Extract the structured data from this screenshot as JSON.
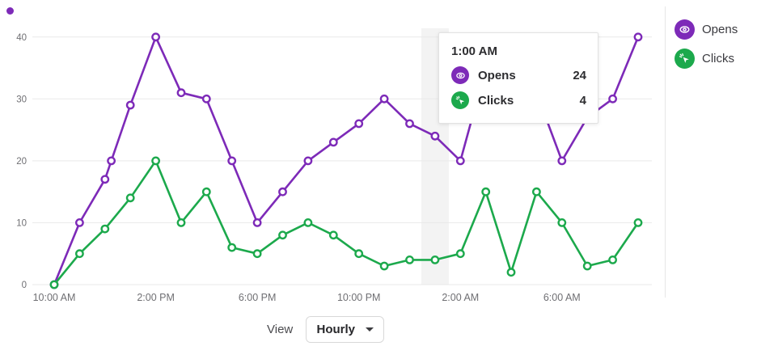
{
  "colors": {
    "opens_purple": "#7D2AB8",
    "clicks_green": "#1CA94C",
    "gridline": "#e9e9e9",
    "axis_text": "#6f6f73",
    "highlight_band": "#f3f3f3"
  },
  "chart_data": {
    "type": "line",
    "title": "",
    "xlabel": "",
    "ylabel": "",
    "grid": true,
    "legend_position": "right",
    "x_axis": {
      "unit": "hours from 10:00 AM",
      "range_hours": [
        0,
        23
      ],
      "tick_hours": [
        0,
        4,
        8,
        12,
        16,
        20
      ],
      "tick_labels": [
        "10:00 AM",
        "2:00 PM",
        "6:00 PM",
        "10:00 PM",
        "2:00 AM",
        "6:00 AM"
      ]
    },
    "y_axis": {
      "ticks": [
        0,
        10,
        20,
        30,
        40
      ],
      "range": [
        0,
        40
      ]
    },
    "highlight_hour": 15,
    "series": [
      {
        "name": "Opens",
        "color": "#7D2AB8",
        "points": [
          [
            0,
            0
          ],
          [
            1,
            10
          ],
          [
            2,
            17
          ],
          [
            2.25,
            20
          ],
          [
            3,
            29
          ],
          [
            4,
            40
          ],
          [
            5,
            31
          ],
          [
            6,
            30
          ],
          [
            7,
            20
          ],
          [
            8,
            10
          ],
          [
            9,
            15
          ],
          [
            10,
            20
          ],
          [
            11,
            23
          ],
          [
            12,
            26
          ],
          [
            13,
            30
          ],
          [
            14,
            26
          ],
          [
            15,
            24
          ],
          [
            16,
            20
          ],
          [
            17,
            35
          ],
          [
            18,
            40
          ],
          [
            19,
            31
          ],
          [
            20,
            20
          ],
          [
            21,
            27
          ],
          [
            22,
            30
          ],
          [
            23,
            40
          ]
        ]
      },
      {
        "name": "Clicks",
        "color": "#1CA94C",
        "points": [
          [
            0,
            0
          ],
          [
            1,
            5
          ],
          [
            2,
            9
          ],
          [
            3,
            14
          ],
          [
            4,
            20
          ],
          [
            5,
            10
          ],
          [
            6,
            15
          ],
          [
            7,
            6
          ],
          [
            8,
            5
          ],
          [
            9,
            8
          ],
          [
            10,
            10
          ],
          [
            11,
            8
          ],
          [
            12,
            5
          ],
          [
            13,
            3
          ],
          [
            14,
            4
          ],
          [
            15,
            4
          ],
          [
            16,
            5
          ],
          [
            17,
            15
          ],
          [
            18,
            2
          ],
          [
            19,
            15
          ],
          [
            20,
            10
          ],
          [
            21,
            3
          ],
          [
            22,
            4
          ],
          [
            23,
            10
          ]
        ]
      }
    ]
  },
  "legend": {
    "items": [
      {
        "label": "Opens",
        "color": "#7D2AB8",
        "icon": "eye-icon"
      },
      {
        "label": "Clicks",
        "color": "#1CA94C",
        "icon": "click-cursor-icon"
      }
    ]
  },
  "tooltip": {
    "title": "1:00 AM",
    "rows": [
      {
        "label": "Opens",
        "value": "24",
        "color": "#7D2AB8",
        "icon": "eye-icon"
      },
      {
        "label": "Clicks",
        "value": "4",
        "color": "#1CA94C",
        "icon": "click-cursor-icon"
      }
    ]
  },
  "view_control": {
    "label": "View",
    "value": "Hourly"
  }
}
